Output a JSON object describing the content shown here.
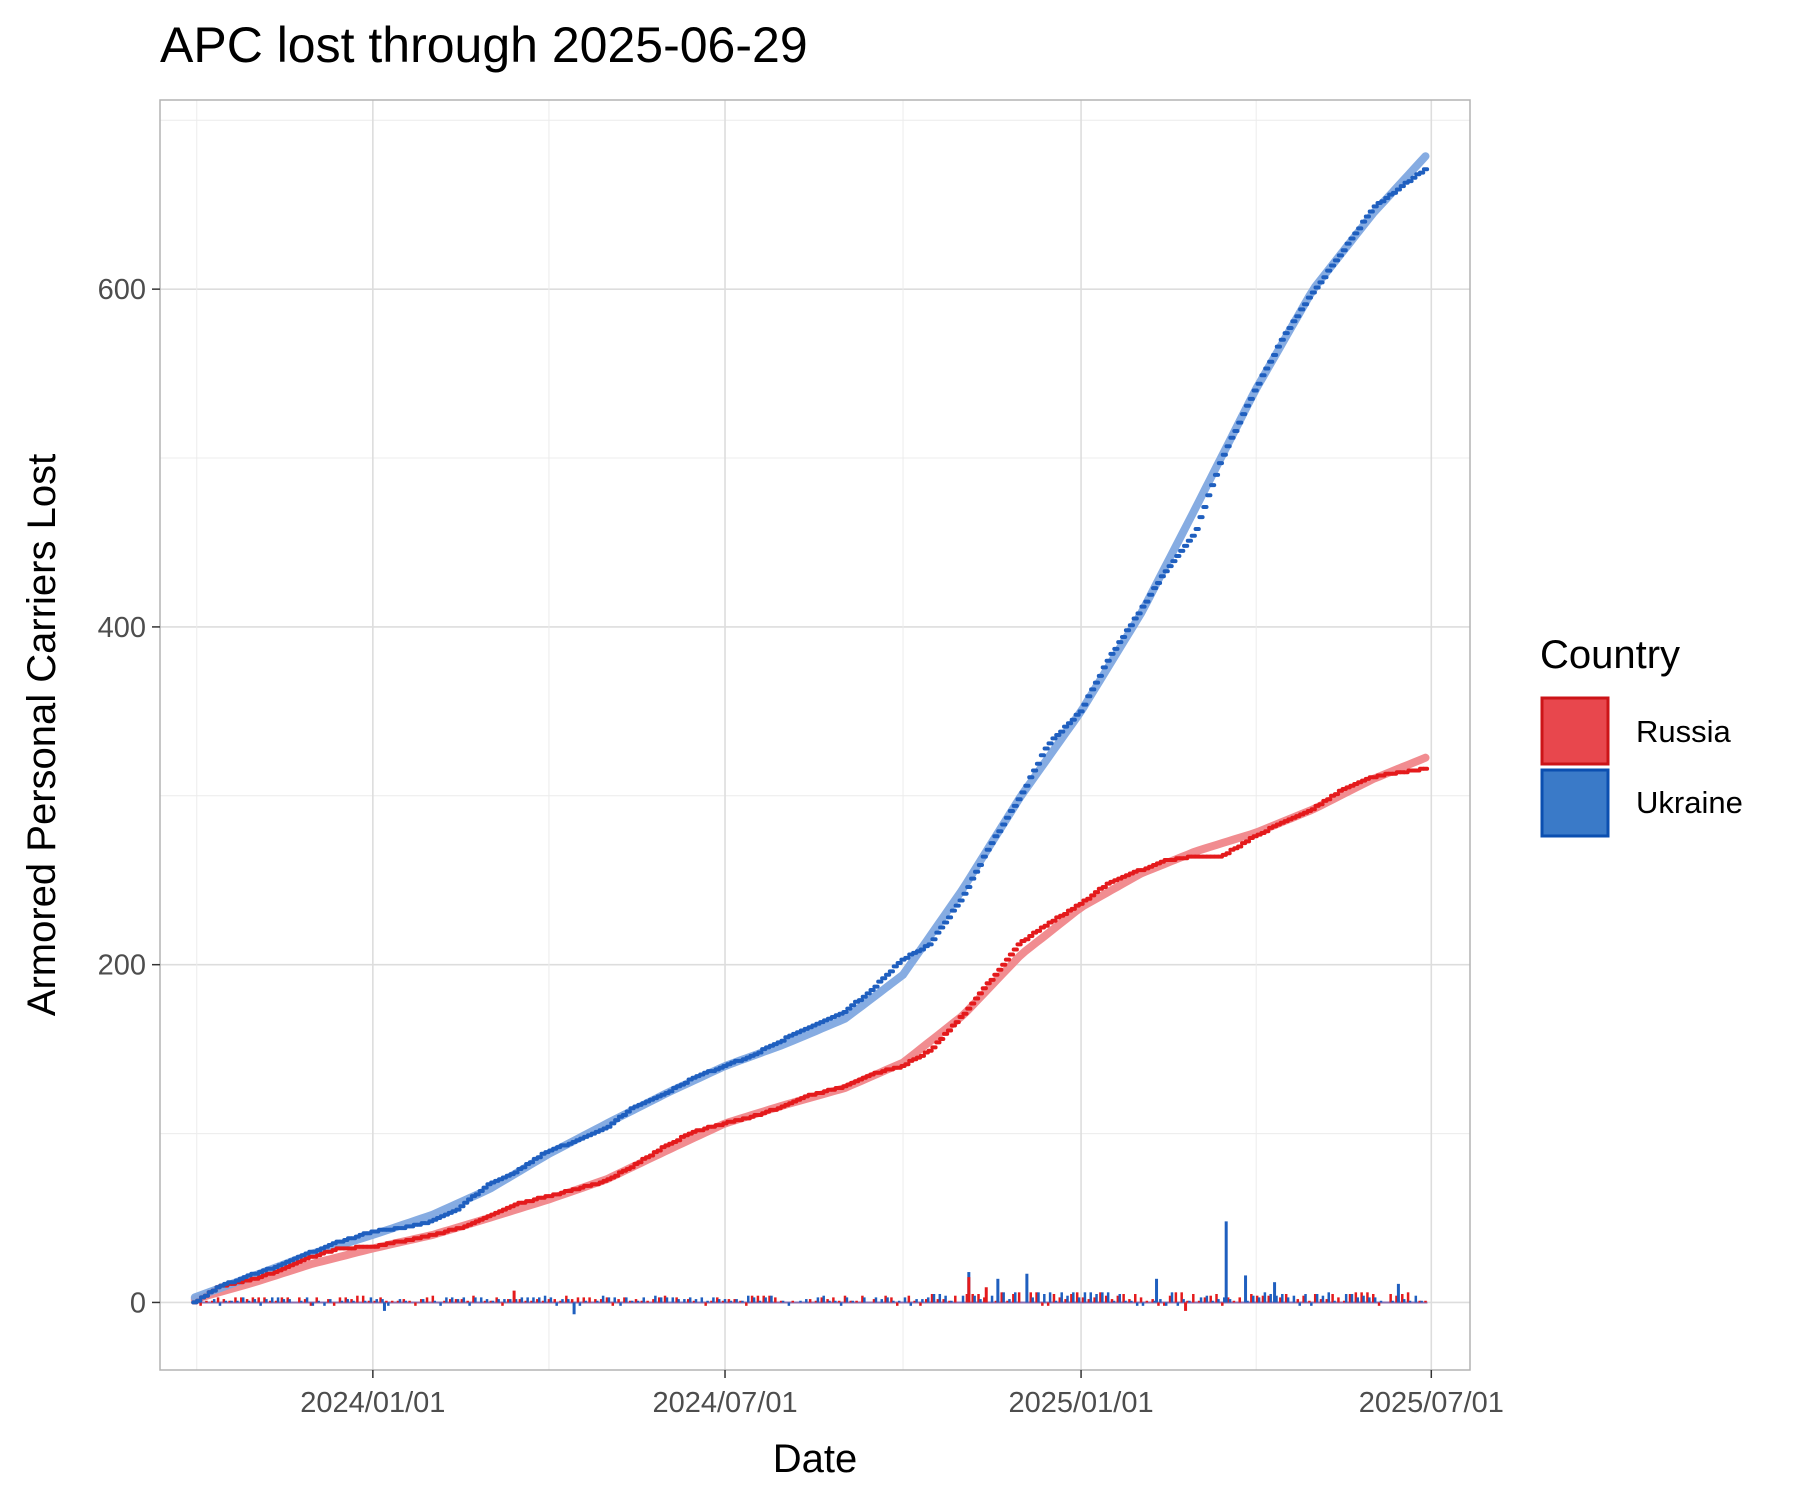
{
  "chart_data": {
    "type": "line",
    "title": "APC lost through 2025-06-29",
    "xlabel": "Date",
    "ylabel": "Armored Personal Carriers Lost",
    "x_ticks": [
      "2024/01/01",
      "2024/07/01",
      "2025/01/01",
      "2025/07/01"
    ],
    "y_ticks": [
      0,
      200,
      400,
      600
    ],
    "xlim": [
      "2023-09-13",
      "2025-07-21"
    ],
    "ylim": [
      -40,
      712
    ],
    "grid": true,
    "legend": {
      "title": "Country",
      "position": "right",
      "entries": [
        {
          "name": "Russia",
          "color": "#e41a1c"
        },
        {
          "name": "Ukraine",
          "color": "#1f5fbf"
        }
      ]
    },
    "series": [
      {
        "name": "Russia",
        "color": "#e41a1c",
        "smooth_color": "#f0868a",
        "cumulative": [
          [
            "2023-10-01",
            0
          ],
          [
            "2023-10-15",
            10
          ],
          [
            "2023-11-01",
            14
          ],
          [
            "2023-11-15",
            19
          ],
          [
            "2023-12-01",
            27
          ],
          [
            "2023-12-15",
            32
          ],
          [
            "2024-01-01",
            33
          ],
          [
            "2024-01-15",
            36
          ],
          [
            "2024-02-01",
            40
          ],
          [
            "2024-02-15",
            44
          ],
          [
            "2024-03-01",
            51
          ],
          [
            "2024-03-15",
            58
          ],
          [
            "2024-04-01",
            63
          ],
          [
            "2024-04-15",
            67
          ],
          [
            "2024-05-01",
            72
          ],
          [
            "2024-05-15",
            81
          ],
          [
            "2024-06-01",
            93
          ],
          [
            "2024-06-15",
            101
          ],
          [
            "2024-07-01",
            106
          ],
          [
            "2024-07-15",
            110
          ],
          [
            "2024-08-01",
            116
          ],
          [
            "2024-08-15",
            123
          ],
          [
            "2024-09-01",
            128
          ],
          [
            "2024-09-15",
            135
          ],
          [
            "2024-10-01",
            140
          ],
          [
            "2024-10-15",
            149
          ],
          [
            "2024-11-01",
            170
          ],
          [
            "2024-11-15",
            190
          ],
          [
            "2024-12-01",
            213
          ],
          [
            "2024-12-15",
            224
          ],
          [
            "2025-01-01",
            236
          ],
          [
            "2025-01-15",
            248
          ],
          [
            "2025-02-01",
            256
          ],
          [
            "2025-02-15",
            262
          ],
          [
            "2025-03-01",
            264
          ],
          [
            "2025-03-15",
            264
          ],
          [
            "2025-04-01",
            276
          ],
          [
            "2025-04-15",
            284
          ],
          [
            "2025-05-01",
            292
          ],
          [
            "2025-05-15",
            303
          ],
          [
            "2025-06-01",
            311
          ],
          [
            "2025-06-15",
            314
          ],
          [
            "2025-06-29",
            316
          ]
        ],
        "smooth": [
          [
            "2023-10-01",
            2
          ],
          [
            "2023-11-01",
            12
          ],
          [
            "2023-12-01",
            23
          ],
          [
            "2024-01-01",
            32
          ],
          [
            "2024-02-01",
            40
          ],
          [
            "2024-03-01",
            50
          ],
          [
            "2024-04-01",
            61
          ],
          [
            "2024-05-01",
            73
          ],
          [
            "2024-06-01",
            90
          ],
          [
            "2024-07-01",
            106
          ],
          [
            "2024-08-01",
            117
          ],
          [
            "2024-09-01",
            127
          ],
          [
            "2024-10-01",
            142
          ],
          [
            "2024-11-01",
            170
          ],
          [
            "2024-12-01",
            206
          ],
          [
            "2025-01-01",
            234
          ],
          [
            "2025-02-01",
            254
          ],
          [
            "2025-03-01",
            267
          ],
          [
            "2025-04-01",
            278
          ],
          [
            "2025-05-01",
            292
          ],
          [
            "2025-06-01",
            310
          ],
          [
            "2025-06-29",
            323
          ]
        ]
      },
      {
        "name": "Ukraine",
        "color": "#1f5fbf",
        "smooth_color": "#7fa8e0",
        "cumulative": [
          [
            "2023-10-01",
            0
          ],
          [
            "2023-10-15",
            10
          ],
          [
            "2023-11-01",
            17
          ],
          [
            "2023-11-15",
            22
          ],
          [
            "2023-12-01",
            30
          ],
          [
            "2023-12-15",
            36
          ],
          [
            "2024-01-01",
            42
          ],
          [
            "2024-01-15",
            44
          ],
          [
            "2024-02-01",
            48
          ],
          [
            "2024-02-15",
            56
          ],
          [
            "2024-03-01",
            70
          ],
          [
            "2024-03-15",
            77
          ],
          [
            "2024-04-01",
            90
          ],
          [
            "2024-04-15",
            95
          ],
          [
            "2024-05-01",
            103
          ],
          [
            "2024-05-15",
            116
          ],
          [
            "2024-06-01",
            124
          ],
          [
            "2024-06-15",
            133
          ],
          [
            "2024-07-01",
            140
          ],
          [
            "2024-07-15",
            146
          ],
          [
            "2024-08-01",
            156
          ],
          [
            "2024-08-15",
            163
          ],
          [
            "2024-09-01",
            172
          ],
          [
            "2024-09-15",
            185
          ],
          [
            "2024-10-01",
            203
          ],
          [
            "2024-10-15",
            212
          ],
          [
            "2024-11-01",
            240
          ],
          [
            "2024-11-15",
            270
          ],
          [
            "2024-12-01",
            300
          ],
          [
            "2024-12-15",
            330
          ],
          [
            "2025-01-01",
            350
          ],
          [
            "2025-01-15",
            380
          ],
          [
            "2025-02-01",
            410
          ],
          [
            "2025-02-15",
            435
          ],
          [
            "2025-03-01",
            455
          ],
          [
            "2025-03-15",
            500
          ],
          [
            "2025-04-01",
            540
          ],
          [
            "2025-04-15",
            570
          ],
          [
            "2025-05-01",
            598
          ],
          [
            "2025-05-15",
            620
          ],
          [
            "2025-06-01",
            648
          ],
          [
            "2025-06-15",
            660
          ],
          [
            "2025-06-29",
            672
          ]
        ],
        "smooth": [
          [
            "2023-10-01",
            3
          ],
          [
            "2023-11-01",
            16
          ],
          [
            "2023-12-01",
            29
          ],
          [
            "2024-01-01",
            40
          ],
          [
            "2024-02-01",
            52
          ],
          [
            "2024-03-01",
            67
          ],
          [
            "2024-04-01",
            88
          ],
          [
            "2024-05-01",
            106
          ],
          [
            "2024-06-01",
            124
          ],
          [
            "2024-07-01",
            140
          ],
          [
            "2024-08-01",
            153
          ],
          [
            "2024-09-01",
            168
          ],
          [
            "2024-10-01",
            194
          ],
          [
            "2024-11-01",
            245
          ],
          [
            "2024-12-01",
            300
          ],
          [
            "2025-01-01",
            350
          ],
          [
            "2025-02-01",
            408
          ],
          [
            "2025-03-01",
            470
          ],
          [
            "2025-04-01",
            540
          ],
          [
            "2025-05-01",
            600
          ],
          [
            "2025-06-01",
            645
          ],
          [
            "2025-06-29",
            680
          ]
        ]
      }
    ],
    "daily_losses": [
      {
        "series": "Ukraine",
        "x": "2025-03-17",
        "y": 48
      },
      {
        "series": "Ukraine",
        "x": "2024-11-04",
        "y": 18
      },
      {
        "series": "Ukraine",
        "x": "2024-12-04",
        "y": 17
      },
      {
        "series": "Ukraine",
        "x": "2025-02-09",
        "y": 14
      },
      {
        "series": "Ukraine",
        "x": "2025-03-27",
        "y": 16
      },
      {
        "series": "Ukraine",
        "x": "2024-11-19",
        "y": 14
      },
      {
        "series": "Ukraine",
        "x": "2025-04-11",
        "y": 12
      },
      {
        "series": "Ukraine",
        "x": "2025-06-14",
        "y": 11
      },
      {
        "series": "Russia",
        "x": "2024-11-04",
        "y": 15
      },
      {
        "series": "Russia",
        "x": "2024-11-13",
        "y": 9
      },
      {
        "series": "Russia",
        "x": "2024-03-14",
        "y": 7
      },
      {
        "series": "Ukraine",
        "x": "2024-04-14",
        "y": -7
      },
      {
        "series": "Ukraine",
        "x": "2024-01-07",
        "y": -5
      },
      {
        "series": "Russia",
        "x": "2025-02-24",
        "y": -5
      }
    ]
  }
}
